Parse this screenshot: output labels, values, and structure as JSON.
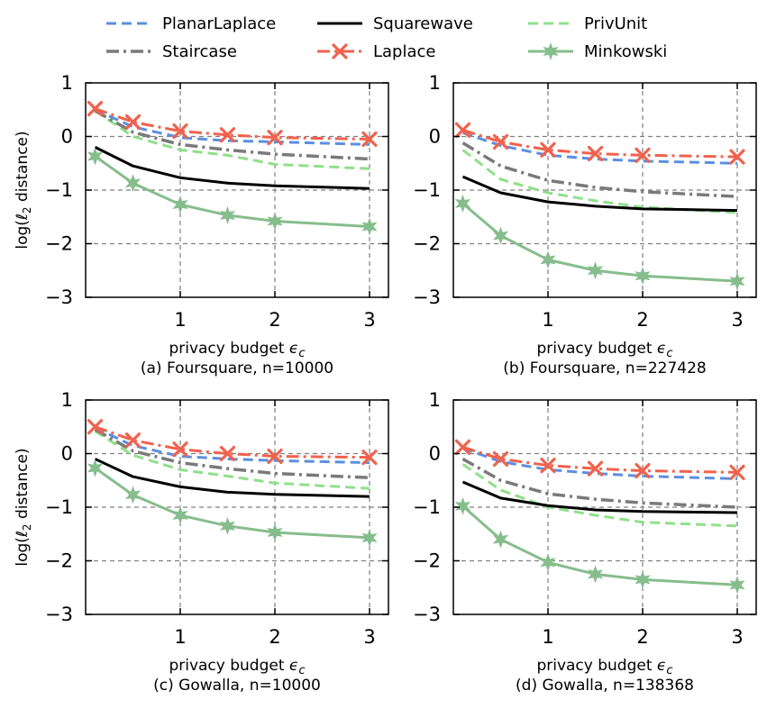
{
  "figure": {
    "legend": [
      {
        "name": "PlanarLaplace",
        "color": "#5b8fe0",
        "style": "dashed",
        "marker": "none"
      },
      {
        "name": "Staircase",
        "color": "#7a7a7a",
        "style": "dashdot",
        "marker": "none"
      },
      {
        "name": "Squarewave",
        "color": "#000000",
        "style": "solid",
        "marker": "none"
      },
      {
        "name": "Laplace",
        "color": "#f0624d",
        "style": "dashdot",
        "marker": "x"
      },
      {
        "name": "PrivUnit",
        "color": "#8fe08a",
        "style": "dashed",
        "marker": "none"
      },
      {
        "name": "Minkowski",
        "color": "#86bd8c",
        "style": "solid",
        "marker": "star"
      }
    ]
  },
  "chart_data": [
    {
      "type": "line",
      "title": "(a) Foursquare, n=10000",
      "xlabel": "privacy budget",
      "xlabel_symbol": "ϵ",
      "xlabel_sub": "c",
      "ylabel": "log(ℓ2 distance)",
      "xlim": [
        0,
        3.2
      ],
      "ylim": [
        -3,
        1
      ],
      "xticks": [
        1,
        2,
        3
      ],
      "yticks": [
        1,
        0,
        -1,
        -2,
        -3
      ],
      "xtick_labels": [
        "1",
        "2",
        "3"
      ],
      "ytick_labels": [
        "1",
        "0",
        "−1",
        "−2",
        "−3"
      ],
      "grid": true,
      "x": [
        0.1,
        0.5,
        1.0,
        1.5,
        2.0,
        3.0
      ],
      "series": [
        {
          "name": "PlanarLaplace",
          "values": [
            0.5,
            0.18,
            -0.02,
            -0.08,
            -0.1,
            -0.15
          ]
        },
        {
          "name": "Staircase",
          "values": [
            0.48,
            0.08,
            -0.15,
            -0.25,
            -0.33,
            -0.42
          ]
        },
        {
          "name": "Squarewave",
          "values": [
            -0.2,
            -0.55,
            -0.77,
            -0.87,
            -0.92,
            -0.97
          ]
        },
        {
          "name": "Laplace",
          "values": [
            0.52,
            0.27,
            0.1,
            0.03,
            -0.02,
            -0.05
          ]
        },
        {
          "name": "PrivUnit",
          "values": [
            0.48,
            0.0,
            -0.25,
            -0.35,
            -0.52,
            -0.6
          ]
        },
        {
          "name": "Minkowski",
          "values": [
            -0.37,
            -0.87,
            -1.27,
            -1.47,
            -1.58,
            -1.68
          ]
        }
      ]
    },
    {
      "type": "line",
      "title": "(b) Foursquare, n=227428",
      "xlabel": "privacy budget",
      "xlabel_symbol": "ϵ",
      "xlabel_sub": "c",
      "ylabel": "",
      "xlim": [
        0,
        3.2
      ],
      "ylim": [
        -3,
        1
      ],
      "xticks": [
        1,
        2,
        3
      ],
      "yticks": [
        1,
        0,
        -1,
        -2,
        -3
      ],
      "xtick_labels": [
        "1",
        "2",
        "3"
      ],
      "ytick_labels": [
        "1",
        "0",
        "−1",
        "−2",
        "−3"
      ],
      "grid": true,
      "x": [
        0.1,
        0.5,
        1.0,
        1.5,
        2.0,
        3.0
      ],
      "series": [
        {
          "name": "PlanarLaplace",
          "values": [
            0.07,
            -0.17,
            -0.35,
            -0.42,
            -0.46,
            -0.5
          ]
        },
        {
          "name": "Staircase",
          "values": [
            -0.12,
            -0.55,
            -0.82,
            -0.95,
            -1.03,
            -1.12
          ]
        },
        {
          "name": "Squarewave",
          "values": [
            -0.75,
            -1.05,
            -1.22,
            -1.3,
            -1.35,
            -1.38
          ]
        },
        {
          "name": "Laplace",
          "values": [
            0.12,
            -0.1,
            -0.25,
            -0.32,
            -0.35,
            -0.38
          ]
        },
        {
          "name": "PrivUnit",
          "values": [
            -0.25,
            -0.8,
            -1.05,
            -1.2,
            -1.32,
            -1.42
          ]
        },
        {
          "name": "Minkowski",
          "values": [
            -1.25,
            -1.85,
            -2.3,
            -2.5,
            -2.6,
            -2.7
          ]
        }
      ]
    },
    {
      "type": "line",
      "title": "(c) Gowalla, n=10000",
      "xlabel": "privacy budget",
      "xlabel_symbol": "ϵ",
      "xlabel_sub": "c",
      "ylabel": "log(ℓ2 distance)",
      "xlim": [
        0,
        3.2
      ],
      "ylim": [
        -3,
        1
      ],
      "xticks": [
        1,
        2,
        3
      ],
      "yticks": [
        1,
        0,
        -1,
        -2,
        -3
      ],
      "xtick_labels": [
        "1",
        "2",
        "3"
      ],
      "ytick_labels": [
        "1",
        "0",
        "−1",
        "−2",
        "−3"
      ],
      "grid": true,
      "x": [
        0.1,
        0.5,
        1.0,
        1.5,
        2.0,
        3.0
      ],
      "series": [
        {
          "name": "PlanarLaplace",
          "values": [
            0.48,
            0.15,
            -0.05,
            -0.1,
            -0.13,
            -0.17
          ]
        },
        {
          "name": "Staircase",
          "values": [
            0.45,
            0.05,
            -0.17,
            -0.28,
            -0.37,
            -0.45
          ]
        },
        {
          "name": "Squarewave",
          "values": [
            -0.1,
            -0.43,
            -0.62,
            -0.72,
            -0.76,
            -0.8
          ]
        },
        {
          "name": "Laplace",
          "values": [
            0.5,
            0.25,
            0.08,
            0.0,
            -0.05,
            -0.07
          ]
        },
        {
          "name": "PrivUnit",
          "values": [
            0.42,
            -0.03,
            -0.3,
            -0.42,
            -0.55,
            -0.65
          ]
        },
        {
          "name": "Minkowski",
          "values": [
            -0.27,
            -0.77,
            -1.15,
            -1.35,
            -1.47,
            -1.57
          ]
        }
      ]
    },
    {
      "type": "line",
      "title": "(d) Gowalla, n=138368",
      "xlabel": "privacy budget",
      "xlabel_symbol": "ϵ",
      "xlabel_sub": "c",
      "ylabel": "",
      "xlim": [
        0,
        3.2
      ],
      "ylim": [
        -3,
        1
      ],
      "xticks": [
        1,
        2,
        3
      ],
      "yticks": [
        1,
        0,
        -1,
        -2,
        -3
      ],
      "xtick_labels": [
        "1",
        "2",
        "3"
      ],
      "ytick_labels": [
        "1",
        "0",
        "−1",
        "−2",
        "−3"
      ],
      "grid": true,
      "x": [
        0.1,
        0.5,
        1.0,
        1.5,
        2.0,
        3.0
      ],
      "series": [
        {
          "name": "PlanarLaplace",
          "values": [
            0.1,
            -0.15,
            -0.3,
            -0.37,
            -0.42,
            -0.47
          ]
        },
        {
          "name": "Staircase",
          "values": [
            -0.1,
            -0.5,
            -0.75,
            -0.85,
            -0.92,
            -1.0
          ]
        },
        {
          "name": "Squarewave",
          "values": [
            -0.53,
            -0.83,
            -0.97,
            -1.05,
            -1.08,
            -1.1
          ]
        },
        {
          "name": "Laplace",
          "values": [
            0.12,
            -0.1,
            -0.22,
            -0.28,
            -0.32,
            -0.35
          ]
        },
        {
          "name": "PrivUnit",
          "values": [
            -0.2,
            -0.68,
            -1.0,
            -1.15,
            -1.28,
            -1.35
          ]
        },
        {
          "name": "Minkowski",
          "values": [
            -0.98,
            -1.6,
            -2.03,
            -2.25,
            -2.35,
            -2.45
          ]
        }
      ]
    }
  ]
}
